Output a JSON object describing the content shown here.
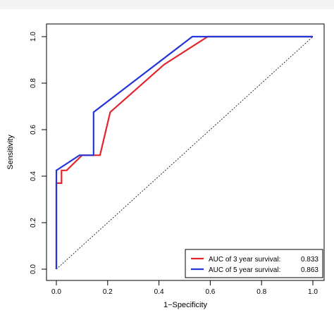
{
  "chart_data": {
    "type": "line",
    "title": "",
    "xlabel": "1−Specificity",
    "ylabel": "Sensitivity",
    "xlim": [
      0,
      1
    ],
    "ylim": [
      0,
      1
    ],
    "x_ticks": [
      "0.0",
      "0.2",
      "0.4",
      "0.6",
      "0.8",
      "1.0"
    ],
    "y_ticks": [
      "0.0",
      "0.2",
      "0.4",
      "0.6",
      "0.8",
      "1.0"
    ],
    "grid": false,
    "legend_position": "bottom-right",
    "series": [
      {
        "name": "AUC of 3 year survival:",
        "auc": "0.833",
        "color": "#e3262b",
        "x": [
          0.0,
          0.0,
          0.02,
          0.02,
          0.04,
          0.1,
          0.17,
          0.21,
          0.42,
          0.59,
          1.0
        ],
        "y": [
          0.0,
          0.37,
          0.37,
          0.425,
          0.425,
          0.49,
          0.49,
          0.675,
          0.88,
          1.0,
          1.0
        ]
      },
      {
        "name": "AUC of 5 year survival:",
        "auc": "0.863",
        "color": "#2436d8",
        "x": [
          0.0,
          0.0,
          0.09,
          0.145,
          0.145,
          0.53,
          1.0
        ],
        "y": [
          0.0,
          0.425,
          0.49,
          0.49,
          0.675,
          1.0,
          1.0
        ]
      }
    ],
    "reference_line": {
      "style": "dashed",
      "color": "#000000",
      "x": [
        0,
        1
      ],
      "y": [
        0,
        1
      ]
    }
  }
}
